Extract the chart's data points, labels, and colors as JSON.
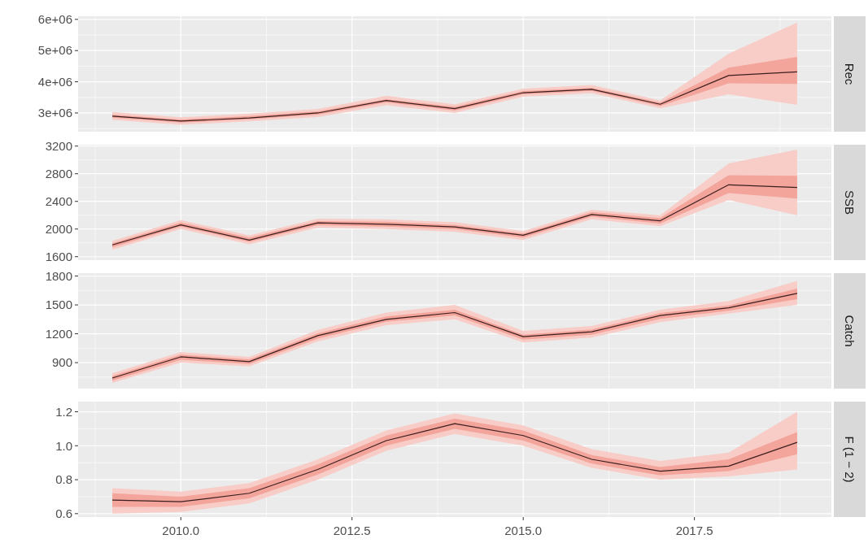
{
  "chart_data": [
    {
      "type": "line",
      "y2label": "Rec",
      "x": [
        2009,
        2010,
        2011,
        2012,
        2013,
        2014,
        2015,
        2016,
        2017,
        2018,
        2019
      ],
      "xlim": [
        2008.5,
        2019.5
      ],
      "xticks": [
        {
          "value": 2010,
          "label": null
        },
        {
          "value": 2012.5,
          "label": null
        },
        {
          "value": 2015,
          "label": null
        },
        {
          "value": 2017.5,
          "label": null
        }
      ],
      "ylim": [
        2400000,
        6100000
      ],
      "yticks": [
        {
          "value": 3000000,
          "label": "3e+06"
        },
        {
          "value": 4000000,
          "label": "4e+06"
        },
        {
          "value": 5000000,
          "label": "5e+06"
        },
        {
          "value": 6000000,
          "label": "6e+06"
        }
      ],
      "grid": true,
      "tick_labels": "y",
      "series": [
        {
          "color": "#f8cdc8",
          "values": [
            null,
            null,
            null,
            null,
            null,
            null,
            null,
            null,
            null,
            null,
            null
          ],
          "lower": [
            2780000,
            2620000,
            2730000,
            2870000,
            3250000,
            3000000,
            3520000,
            3630000,
            3150000,
            3600000,
            3260000
          ],
          "upper": [
            3030000,
            2860000,
            2980000,
            3130000,
            3550000,
            3280000,
            3780000,
            3900000,
            3400000,
            4900000,
            5900000
          ]
        },
        {
          "color": "#f3a49b",
          "values": [
            null,
            null,
            null,
            null,
            null,
            null,
            null,
            null,
            null,
            null,
            null
          ],
          "lower": [
            2850000,
            2690000,
            2800000,
            2950000,
            3340000,
            3080000,
            3600000,
            3710000,
            3220000,
            3950000,
            3930000
          ],
          "upper": [
            2950000,
            2790000,
            2900000,
            3050000,
            3440000,
            3200000,
            3700000,
            3810000,
            3330000,
            4450000,
            4800000
          ]
        },
        {
          "color": "#3b1f1f",
          "values": [
            2900000,
            2740000,
            2840000,
            3000000,
            3400000,
            3140000,
            3650000,
            3760000,
            3280000,
            4200000,
            4320000
          ]
        }
      ]
    },
    {
      "type": "line",
      "y2label": "SSB",
      "x": [
        2009,
        2010,
        2011,
        2012,
        2013,
        2014,
        2015,
        2016,
        2017,
        2018,
        2019
      ],
      "xlim": [
        2008.5,
        2019.5
      ],
      "xticks": [
        {
          "value": 2010,
          "label": null
        },
        {
          "value": 2012.5,
          "label": null
        },
        {
          "value": 2015,
          "label": null
        },
        {
          "value": 2017.5,
          "label": null
        }
      ],
      "ylim": [
        1550,
        3220
      ],
      "yticks": [
        1600,
        2000,
        2400,
        2800,
        3200
      ],
      "grid": true,
      "tick_labels": "y",
      "series": [
        {
          "color": "#f8cdc8",
          "values": [
            null,
            null,
            null,
            null,
            null,
            null,
            null,
            null,
            null,
            null,
            null
          ],
          "lower": [
            1700,
            2000,
            1780,
            2020,
            2000,
            1960,
            1840,
            2140,
            2040,
            2420,
            2200
          ],
          "upper": [
            1830,
            2130,
            1910,
            2150,
            2140,
            2100,
            1970,
            2280,
            2200,
            2950,
            3150
          ]
        },
        {
          "color": "#f3a49b",
          "values": [
            null,
            null,
            null,
            null,
            null,
            null,
            null,
            null,
            null,
            null,
            null
          ],
          "lower": [
            1735,
            2035,
            1815,
            2055,
            2035,
            2000,
            1875,
            2180,
            2080,
            2520,
            2440
          ],
          "upper": [
            1795,
            2095,
            1875,
            2115,
            2105,
            2060,
            1935,
            2245,
            2160,
            2780,
            2770
          ]
        },
        {
          "color": "#3b1f1f",
          "values": [
            1770,
            2060,
            1840,
            2090,
            2070,
            2030,
            1910,
            2210,
            2120,
            2640,
            2600
          ]
        }
      ]
    },
    {
      "type": "line",
      "y2label": "Catch",
      "x": [
        2009,
        2010,
        2011,
        2012,
        2013,
        2014,
        2015,
        2016,
        2017,
        2018,
        2019
      ],
      "xlim": [
        2008.5,
        2019.5
      ],
      "xticks": [
        {
          "value": 2010,
          "label": null
        },
        {
          "value": 2012.5,
          "label": null
        },
        {
          "value": 2015,
          "label": null
        },
        {
          "value": 2017.5,
          "label": null
        }
      ],
      "ylim": [
        630,
        1830
      ],
      "yticks": [
        900,
        1200,
        1500,
        1800
      ],
      "grid": true,
      "tick_labels": "y",
      "series": [
        {
          "color": "#f8cdc8",
          "values": [
            null,
            null,
            null,
            null,
            null,
            null,
            null,
            null,
            null,
            null,
            null
          ],
          "lower": [
            690,
            900,
            860,
            1120,
            1290,
            1350,
            1110,
            1160,
            1320,
            1410,
            1500
          ],
          "upper": [
            790,
            1010,
            960,
            1240,
            1420,
            1500,
            1230,
            1280,
            1450,
            1540,
            1750
          ]
        },
        {
          "color": "#f3a49b",
          "values": [
            null,
            null,
            null,
            null,
            null,
            null,
            null,
            null,
            null,
            null,
            null
          ],
          "lower": [
            712,
            930,
            885,
            1150,
            1325,
            1390,
            1140,
            1190,
            1355,
            1440,
            1560
          ],
          "upper": [
            760,
            982,
            935,
            1205,
            1380,
            1450,
            1190,
            1245,
            1415,
            1495,
            1670
          ]
        },
        {
          "color": "#3b1f1f",
          "values": [
            740,
            960,
            910,
            1180,
            1350,
            1420,
            1170,
            1220,
            1390,
            1470,
            1620
          ]
        }
      ]
    },
    {
      "type": "line",
      "y2label": "F (1 − 2)",
      "x": [
        2009,
        2010,
        2011,
        2012,
        2013,
        2014,
        2015,
        2016,
        2017,
        2018,
        2019
      ],
      "xlim": [
        2008.5,
        2019.5
      ],
      "xticks": [
        {
          "value": 2010,
          "label": "2010.0"
        },
        {
          "value": 2012.5,
          "label": "2012.5"
        },
        {
          "value": 2015,
          "label": "2015.0"
        },
        {
          "value": 2017.5,
          "label": "2017.5"
        }
      ],
      "ylim": [
        0.58,
        1.26
      ],
      "yticks": [
        0.6,
        0.8,
        {
          "value": 1,
          "label": "1.0"
        },
        1.2
      ],
      "grid": true,
      "series": [
        {
          "color": "#f8cdc8",
          "values": [
            null,
            null,
            null,
            null,
            null,
            null,
            null,
            null,
            null,
            null,
            null
          ],
          "lower": [
            0.6,
            0.61,
            0.66,
            0.8,
            0.97,
            1.07,
            1.0,
            0.87,
            0.8,
            0.82,
            0.86
          ],
          "upper": [
            0.75,
            0.73,
            0.78,
            0.92,
            1.09,
            1.19,
            1.12,
            0.98,
            0.91,
            0.96,
            1.2
          ]
        },
        {
          "color": "#f3a49b",
          "values": [
            null,
            null,
            null,
            null,
            null,
            null,
            null,
            null,
            null,
            null,
            null
          ],
          "lower": [
            0.64,
            0.64,
            0.69,
            0.83,
            1.0,
            1.1,
            1.03,
            0.895,
            0.825,
            0.85,
            0.95
          ],
          "upper": [
            0.72,
            0.7,
            0.75,
            0.89,
            1.06,
            1.16,
            1.09,
            0.945,
            0.875,
            0.92,
            1.08
          ]
        },
        {
          "color": "#3b1f1f",
          "values": [
            0.68,
            0.67,
            0.72,
            0.86,
            1.03,
            1.13,
            1.06,
            0.92,
            0.85,
            0.88,
            1.02
          ]
        }
      ]
    }
  ]
}
